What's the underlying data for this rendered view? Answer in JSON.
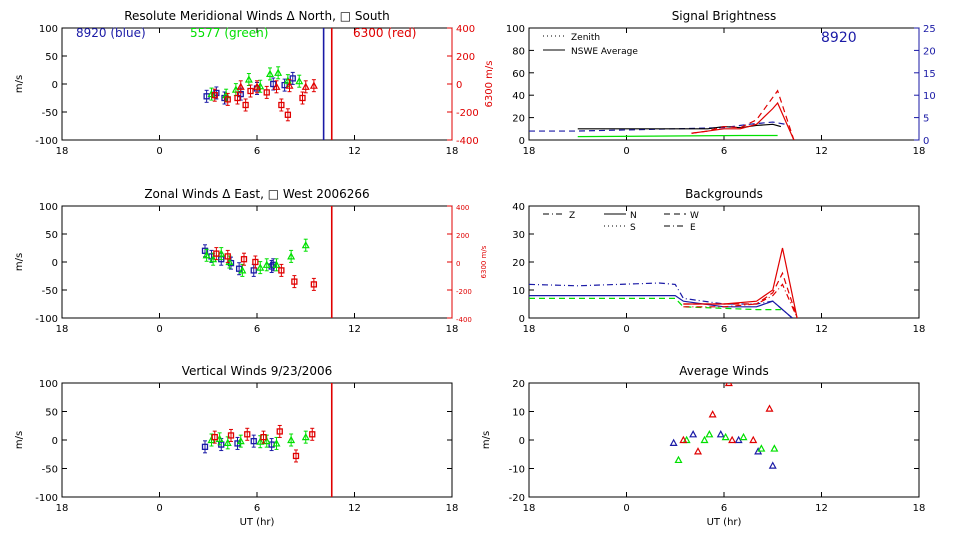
{
  "page": {
    "panel_titles": [
      "Resolute Meridional Winds Δ North, □ South",
      "Zonal Winds Δ East, □ West 2006266",
      "Vertical Winds 9/23/2006",
      "Signal Brightness",
      "Backgrounds",
      "Average Winds"
    ],
    "colors": {
      "blue": "#1a1aa6",
      "green": "#00e000",
      "red": "#e00000",
      "black": "#000000"
    }
  },
  "chart_data": [
    {
      "id": "meridional",
      "type": "scatter",
      "title": "Resolute Meridional Winds Δ North, □ South",
      "ylabel": "m/s",
      "xlabel": "",
      "xlim": [
        18,
        42
      ],
      "ylim": [
        -100,
        100
      ],
      "xticks": [
        18,
        24,
        30,
        36,
        42
      ],
      "xtick_labels": [
        "18",
        "0",
        "6",
        "12",
        "18"
      ],
      "yticks": [
        -100,
        -50,
        0,
        50,
        100
      ],
      "ytick_labels": [
        "-100",
        "-50",
        "0",
        "50",
        "100"
      ],
      "y2label": "6300 m/s",
      "y2lim": [
        -400,
        400
      ],
      "y2ticks": [
        -400,
        -200,
        0,
        200,
        400
      ],
      "y2tick_labels": [
        "-400",
        "-200",
        "0",
        "200",
        "400"
      ],
      "annotations": [
        {
          "text": "8920 (blue)",
          "color": "#1a1aa6"
        },
        {
          "text": "5577 (green)",
          "color": "#00e000"
        },
        {
          "text": "6300 (red)",
          "color": "#e00000"
        }
      ],
      "vlines": [
        {
          "x": 34.1,
          "color": "#1a1aa6"
        },
        {
          "x": 34.6,
          "color": "#e00000"
        }
      ],
      "series": [
        {
          "color": "#1a1aa6",
          "x": [
            26.9,
            27.5,
            28.0,
            29.0,
            30.0,
            31.0,
            31.7,
            32.2
          ],
          "y": [
            -22,
            -16,
            -25,
            -18,
            -8,
            0,
            -2,
            10
          ]
        },
        {
          "color": "#00e000",
          "x": [
            27.2,
            28.1,
            28.7,
            29.5,
            30.2,
            30.8,
            31.3,
            31.9,
            32.6
          ],
          "y": [
            -18,
            -20,
            -10,
            8,
            -4,
            18,
            20,
            6,
            5
          ]
        },
        {
          "color": "#e00000",
          "x": [
            27.4,
            28.2,
            28.8,
            29.3,
            29.6,
            30.6,
            31.5,
            31.9,
            32.8
          ],
          "y": [
            -80,
            -110,
            -100,
            -150,
            -50,
            -60,
            -150,
            -220,
            -100
          ]
        },
        {
          "color": "#e00000",
          "x": [
            29.0,
            30.0,
            31.2,
            32.0,
            33.0,
            33.5
          ],
          "y": [
            -20,
            -20,
            -20,
            -12,
            -20,
            -12
          ]
        }
      ]
    },
    {
      "id": "brightness",
      "type": "line",
      "title": "Signal Brightness",
      "xlabel": "",
      "ylabel": "",
      "xlim": [
        18,
        42
      ],
      "ylim": [
        0,
        100
      ],
      "xticks": [
        18,
        24,
        30,
        36,
        42
      ],
      "xtick_labels": [
        "18",
        "0",
        "6",
        "12",
        "18"
      ],
      "yticks": [
        0,
        20,
        40,
        60,
        80,
        100
      ],
      "ytick_labels": [
        "0",
        "20",
        "40",
        "60",
        "80",
        "100"
      ],
      "y2lim": [
        0,
        25
      ],
      "y2ticks": [
        0,
        5,
        10,
        15,
        20,
        25
      ],
      "y2tick_labels": [
        "0",
        "5",
        "10",
        "15",
        "20",
        "25"
      ],
      "annotations": [
        {
          "text": "8920",
          "color": "#1a1aa6"
        }
      ],
      "legend": {
        "placement": "top-left",
        "entries": [
          "Zenith",
          "NSWE Average"
        ]
      },
      "series": [
        {
          "color": "#1a1aa6",
          "dash": "6,4",
          "x": [
            18,
            21,
            24,
            27,
            30,
            31.5,
            33,
            33.8
          ],
          "y": [
            8,
            8,
            9,
            10,
            11,
            14,
            16,
            14
          ]
        },
        {
          "color": "#000000",
          "dash": "",
          "x": [
            21,
            29,
            30,
            31,
            32,
            33,
            33.5
          ],
          "y": [
            10,
            10,
            12,
            11,
            13,
            14,
            12
          ]
        },
        {
          "color": "#e00000",
          "dash": "6,4",
          "x": [
            28,
            29,
            30,
            31,
            32,
            33,
            33.3,
            34.3
          ],
          "y": [
            6,
            8,
            12,
            11,
            18,
            38,
            44,
            0
          ]
        },
        {
          "color": "#e00000",
          "dash": "",
          "x": [
            28,
            29,
            30,
            31,
            32,
            33,
            33.3,
            34.3
          ],
          "y": [
            6,
            8,
            10,
            10,
            14,
            28,
            33,
            0
          ]
        },
        {
          "color": "#00e000",
          "dash": "",
          "x": [
            21,
            31,
            32,
            33.3
          ],
          "y": [
            3,
            4,
            4,
            4
          ]
        }
      ]
    },
    {
      "id": "zonal",
      "type": "scatter",
      "title": "Zonal Winds Δ East, □ West 2006266",
      "ylabel": "m/s",
      "xlabel": "",
      "xlim": [
        18,
        42
      ],
      "ylim": [
        -100,
        100
      ],
      "xticks": [
        18,
        24,
        30,
        36,
        42
      ],
      "xtick_labels": [
        "18",
        "0",
        "6",
        "12",
        "18"
      ],
      "yticks": [
        -100,
        -50,
        0,
        50,
        100
      ],
      "ytick_labels": [
        "-100",
        "-50",
        "0",
        "50",
        "100"
      ],
      "y2label": "6300 m/s",
      "y2lim": [
        -400,
        400
      ],
      "y2ticks": [
        -400,
        -200,
        0,
        200,
        400
      ],
      "y2tick_labels": [
        "-400",
        "-200",
        "0",
        "200",
        "400"
      ],
      "vlines": [
        {
          "x": 34.6,
          "color": "#e00000"
        }
      ],
      "series": [
        {
          "color": "#1a1aa6",
          "x": [
            26.8,
            27.2,
            27.8,
            28.4,
            28.9,
            29.8,
            30.9,
            31.0
          ],
          "y": [
            20,
            10,
            5,
            -2,
            -12,
            -15,
            -8,
            -5
          ]
        },
        {
          "color": "#00e000",
          "x": [
            26.9,
            27.3,
            27.8,
            28.3,
            29.1,
            30.2,
            30.6,
            31.2,
            32.1,
            33.0
          ],
          "y": [
            12,
            5,
            15,
            0,
            -15,
            -10,
            -5,
            -5,
            10,
            30
          ]
        },
        {
          "color": "#e00000",
          "x": [
            27.5,
            28.2,
            29.2,
            29.9,
            31.5,
            32.3,
            33.5
          ],
          "y": [
            60,
            40,
            20,
            0,
            -60,
            -140,
            -160
          ]
        }
      ]
    },
    {
      "id": "backgrounds",
      "type": "line",
      "title": "Backgrounds",
      "xlabel": "",
      "ylabel": "",
      "xlim": [
        18,
        42
      ],
      "ylim": [
        0,
        40
      ],
      "xticks": [
        18,
        24,
        30,
        36,
        42
      ],
      "xtick_labels": [
        "18",
        "0",
        "6",
        "12",
        "18"
      ],
      "yticks": [
        0,
        10,
        20,
        30,
        40
      ],
      "ytick_labels": [
        "0",
        "10",
        "20",
        "30",
        "40"
      ],
      "legend": {
        "placement": "top-left",
        "entries": [
          "Z",
          "N",
          "W",
          "S",
          "E"
        ]
      },
      "series": [
        {
          "color": "#1a1aa6",
          "dash": "6,3,1,3",
          "x": [
            18,
            21,
            26,
            27,
            27.5,
            30,
            32,
            33,
            34.2
          ],
          "y": [
            12,
            11.5,
            12.5,
            12,
            7,
            5,
            5,
            6,
            0
          ]
        },
        {
          "color": "#1a1aa6",
          "dash": "",
          "x": [
            18,
            27,
            27.5,
            30,
            32,
            33,
            34.2
          ],
          "y": [
            8,
            8,
            6,
            4,
            4,
            6,
            0
          ]
        },
        {
          "color": "#00e000",
          "dash": "6,4",
          "x": [
            18,
            27,
            27.5,
            32,
            33.5
          ],
          "y": [
            7,
            7,
            4,
            3,
            3
          ]
        },
        {
          "color": "#e00000",
          "dash": "",
          "x": [
            27.5,
            29,
            30,
            32,
            33,
            33.6,
            34.5
          ],
          "y": [
            5,
            5,
            5,
            6,
            10,
            25,
            0
          ]
        },
        {
          "color": "#e00000",
          "dash": "6,4",
          "x": [
            27.5,
            30,
            32,
            33,
            33.6,
            34.5
          ],
          "y": [
            5,
            5,
            5,
            9,
            16,
            0
          ]
        },
        {
          "color": "#e00000",
          "dash": "6,3,1,3",
          "x": [
            27.5,
            30,
            32,
            33,
            33.6,
            34.5
          ],
          "y": [
            4,
            4,
            5,
            8,
            12,
            0
          ]
        }
      ]
    },
    {
      "id": "vertical",
      "type": "scatter",
      "title": "Vertical Winds 9/23/2006",
      "ylabel": "m/s",
      "xlabel": "UT (hr)",
      "xlim": [
        18,
        42
      ],
      "ylim": [
        -100,
        100
      ],
      "xticks": [
        18,
        24,
        30,
        36,
        42
      ],
      "xtick_labels": [
        "18",
        "0",
        "6",
        "12",
        "18"
      ],
      "yticks": [
        -100,
        -50,
        0,
        50,
        100
      ],
      "ytick_labels": [
        "-100",
        "-50",
        "0",
        "50",
        "100"
      ],
      "vlines": [
        {
          "x": 34.6,
          "color": "#e00000"
        }
      ],
      "series": [
        {
          "color": "#1a1aa6",
          "x": [
            26.8,
            27.8,
            28.8,
            29.8,
            30.9
          ],
          "y": [
            -12,
            -8,
            -6,
            -2,
            -8
          ]
        },
        {
          "color": "#00e000",
          "x": [
            27.2,
            27.7,
            28.2,
            29.0,
            30.2,
            30.6,
            31.2,
            32.1,
            33.0
          ],
          "y": [
            0,
            2,
            -5,
            -2,
            -3,
            -2,
            -6,
            0,
            5
          ]
        },
        {
          "color": "#e00000",
          "x": [
            27.4,
            28.4,
            29.4,
            30.4,
            31.4,
            32.4,
            33.4
          ],
          "y": [
            5,
            8,
            10,
            5,
            15,
            -28,
            10
          ]
        }
      ]
    },
    {
      "id": "average",
      "type": "scatter",
      "title": "Average Winds",
      "ylabel": "m/s",
      "xlabel": "UT (hr)",
      "xlim": [
        18,
        42
      ],
      "ylim": [
        -20,
        20
      ],
      "xticks": [
        18,
        24,
        30,
        36,
        42
      ],
      "xtick_labels": [
        "18",
        "0",
        "6",
        "12",
        "18"
      ],
      "yticks": [
        -20,
        -10,
        0,
        10,
        20
      ],
      "ytick_labels": [
        "-20",
        "-10",
        "0",
        "10",
        "20"
      ],
      "series": [
        {
          "color": "#1a1aa6",
          "x": [
            26.9,
            28.1,
            29.8,
            30.9,
            32.1,
            33.0
          ],
          "y": [
            -1,
            2,
            2,
            0,
            -4,
            -9
          ]
        },
        {
          "color": "#00e000",
          "x": [
            27.2,
            27.7,
            28.8,
            29.1,
            30.1,
            31.2,
            32.3,
            33.1
          ],
          "y": [
            -7,
            0,
            0,
            2,
            1,
            1,
            -3,
            -3
          ]
        },
        {
          "color": "#e00000",
          "x": [
            27.5,
            28.4,
            29.3,
            30.3,
            30.5,
            31.8,
            32.8
          ],
          "y": [
            0,
            -4,
            9,
            20,
            0,
            0,
            11
          ]
        }
      ]
    }
  ]
}
